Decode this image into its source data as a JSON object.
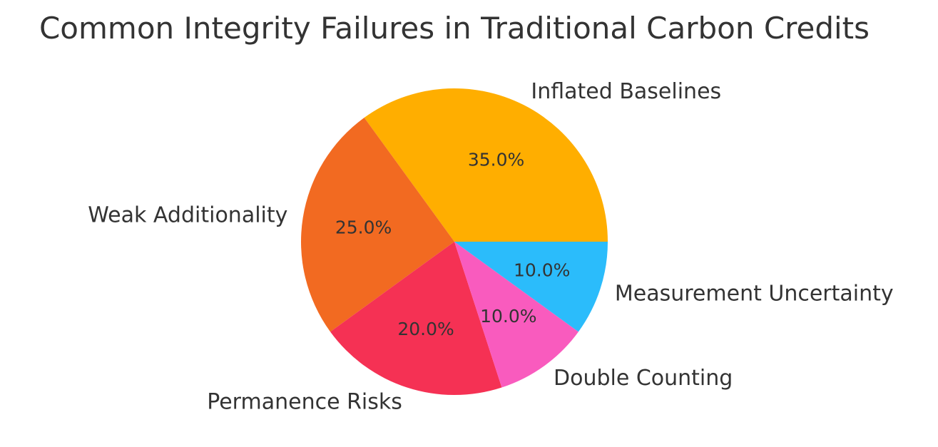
{
  "chart_data": {
    "type": "pie",
    "title": "Common Integrity Failures in Traditional Carbon Credits",
    "start_angle": 0,
    "direction": "counterclockwise",
    "slices": [
      {
        "label": "Inflated Baselines",
        "value": 35.0,
        "pct_label": "35.0%",
        "color": "#FFAE00"
      },
      {
        "label": "Weak Additionality",
        "value": 25.0,
        "pct_label": "25.0%",
        "color": "#F26A21"
      },
      {
        "label": "Permanence Risks",
        "value": 20.0,
        "pct_label": "20.0%",
        "color": "#F53154"
      },
      {
        "label": "Double Counting",
        "value": 10.0,
        "pct_label": "10.0%",
        "color": "#F95BBE"
      },
      {
        "label": "Measurement Uncertainty",
        "value": 10.0,
        "pct_label": "10.0%",
        "color": "#2BBCFB"
      }
    ],
    "legend": "none",
    "text_color": "#333333"
  }
}
